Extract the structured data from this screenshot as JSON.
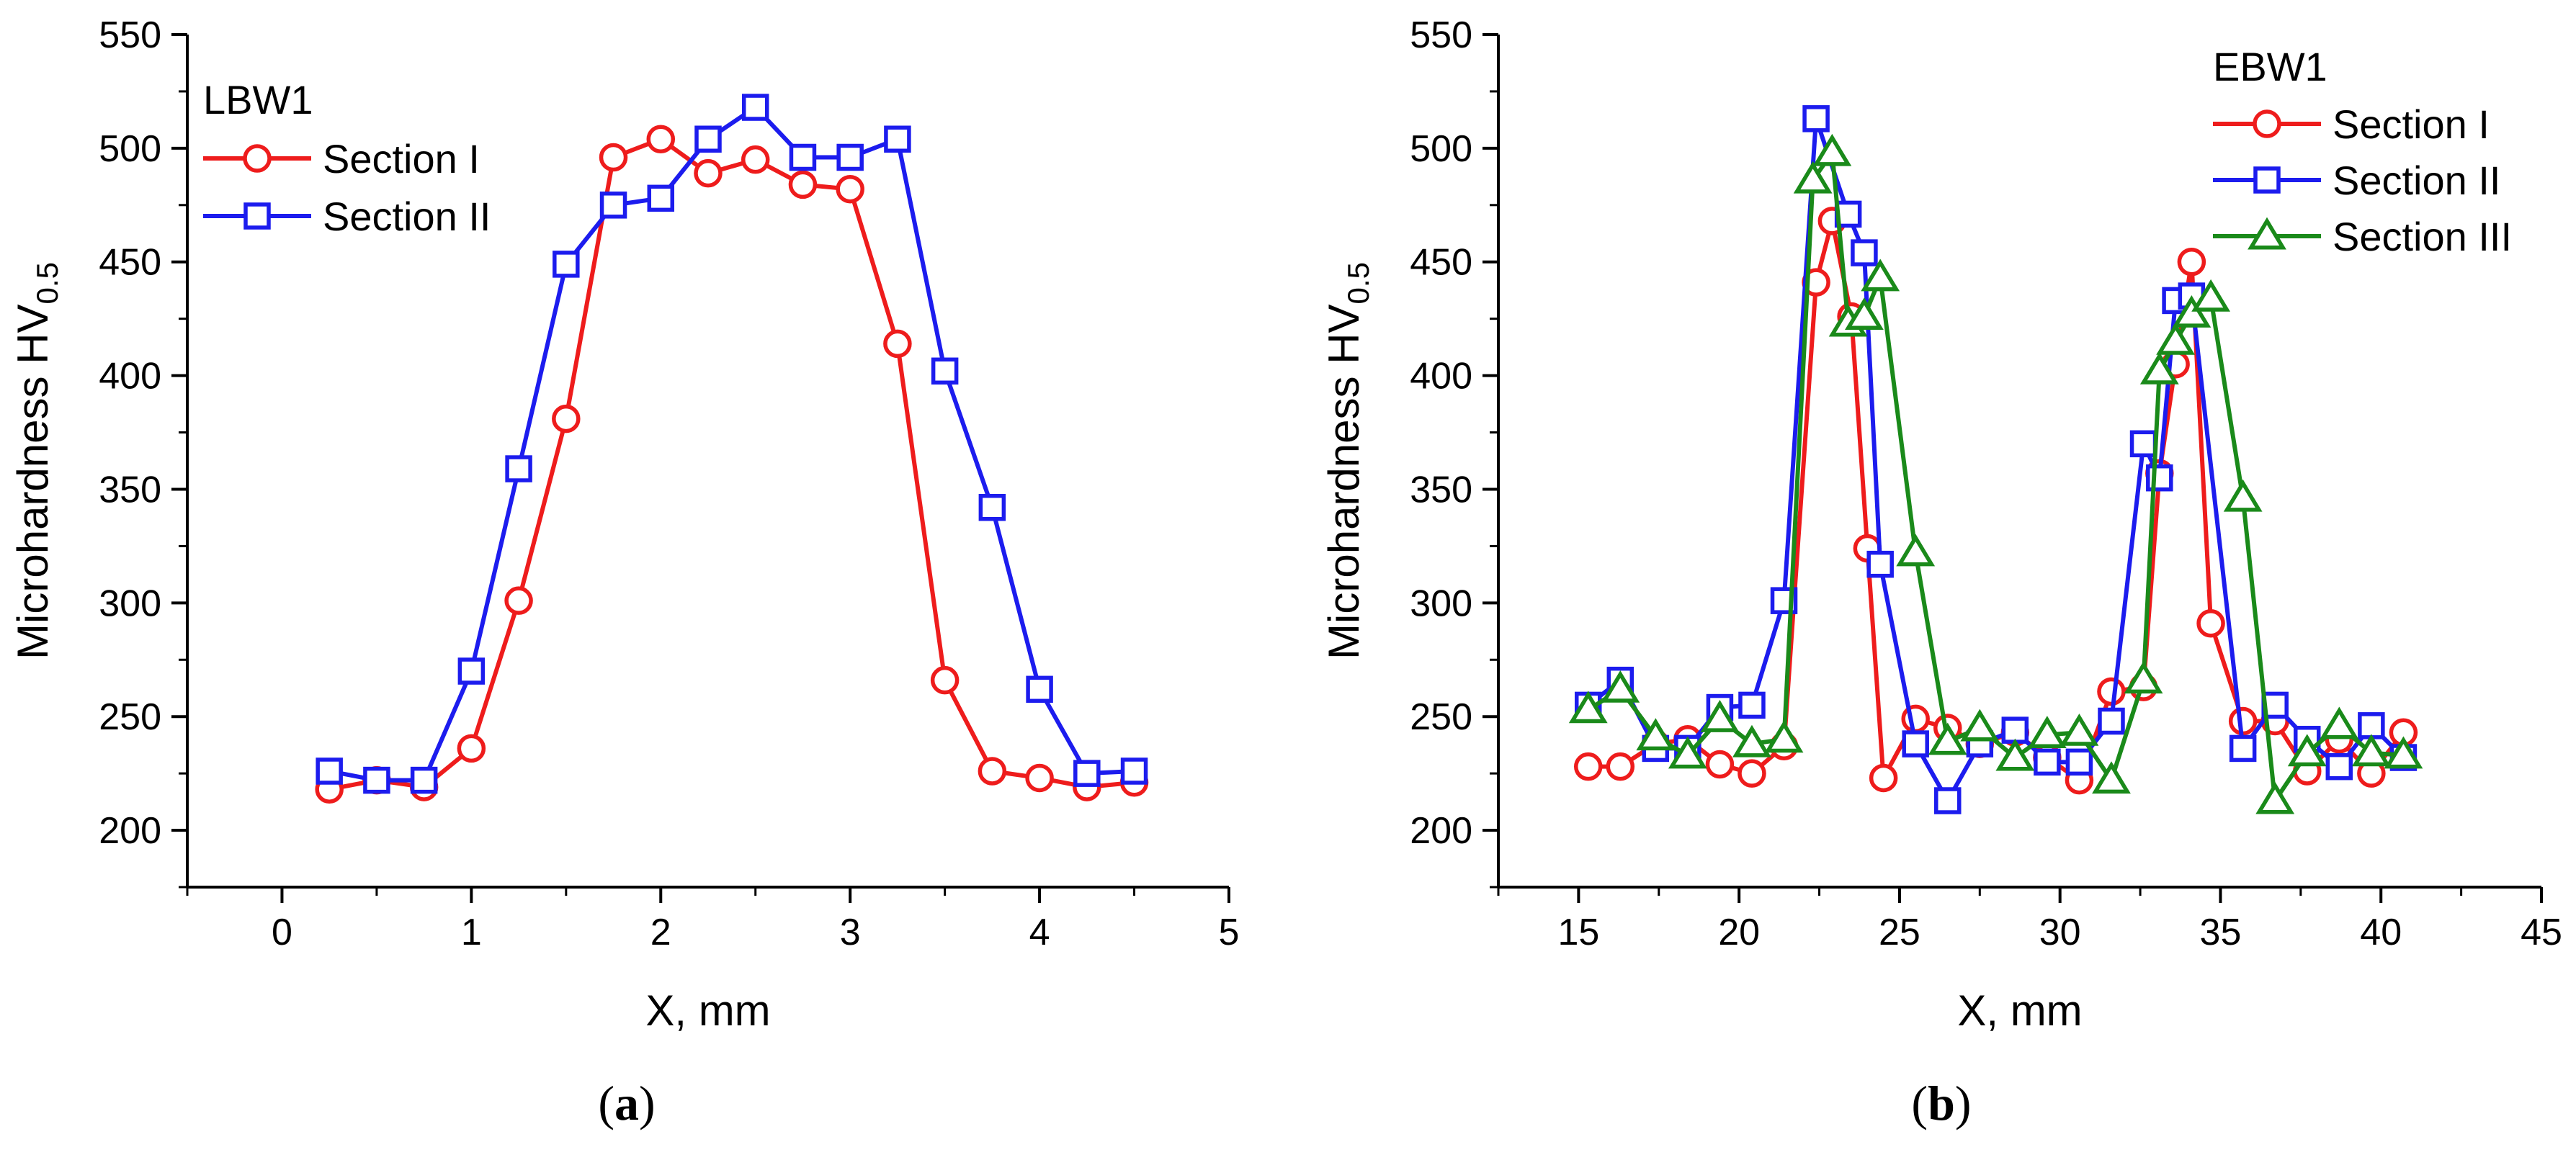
{
  "chart_data": [
    {
      "type": "line",
      "panel_label": "a",
      "title": "LBW1",
      "xlabel": "X, mm",
      "ylabel": "Microhardness HV",
      "ylabel_subscript": "0.5",
      "xlim": [
        -0.5,
        5
      ],
      "ylim": [
        175,
        550
      ],
      "xticks": [
        0,
        1,
        2,
        3,
        4,
        5
      ],
      "xtick_labels": [
        "0",
        "1",
        "2",
        "3",
        "4",
        "5"
      ],
      "yticks": [
        200,
        250,
        300,
        350,
        400,
        450,
        500,
        550
      ],
      "ytick_labels": [
        "200",
        "250",
        "300",
        "350",
        "400",
        "450",
        "500",
        "550"
      ],
      "legend_position": "top-left",
      "series": [
        {
          "name": "Section I",
          "color": "#ee1c1c",
          "marker": "circle",
          "x": [
            0.25,
            0.5,
            0.75,
            1.0,
            1.25,
            1.5,
            1.75,
            2.0,
            2.25,
            2.5,
            2.75,
            3.0,
            3.25,
            3.5,
            3.75,
            4.0,
            4.25,
            4.5
          ],
          "y": [
            218,
            222,
            219,
            236,
            301,
            381,
            496,
            504,
            489,
            495,
            484,
            482,
            414,
            266,
            226,
            223,
            219,
            221
          ]
        },
        {
          "name": "Section II",
          "color": "#1c1cee",
          "marker": "square",
          "x": [
            0.25,
            0.5,
            0.75,
            1.0,
            1.25,
            1.5,
            1.75,
            2.0,
            2.25,
            2.5,
            2.75,
            3.0,
            3.25,
            3.5,
            3.75,
            4.0,
            4.25,
            4.5
          ],
          "y": [
            226,
            222,
            222,
            270,
            359,
            449,
            475,
            478,
            504,
            518,
            496,
            496,
            504,
            402,
            342,
            262,
            225,
            226
          ]
        }
      ]
    },
    {
      "type": "line",
      "panel_label": "b",
      "title": "EBW1",
      "xlabel": "X, mm",
      "ylabel": "Microhardness HV",
      "ylabel_subscript": "0.5",
      "xlim": [
        12.5,
        45
      ],
      "ylim": [
        175,
        550
      ],
      "xticks": [
        15,
        20,
        25,
        30,
        35,
        40,
        45
      ],
      "xtick_labels": [
        "15",
        "20",
        "25",
        "30",
        "35",
        "40",
        "45"
      ],
      "yticks": [
        200,
        250,
        300,
        350,
        400,
        450,
        500,
        550
      ],
      "ytick_labels": [
        "200",
        "250",
        "300",
        "350",
        "400",
        "450",
        "500",
        "550"
      ],
      "legend_position": "top-right",
      "series": [
        {
          "name": "Section I",
          "color": "#ee1c1c",
          "marker": "circle",
          "x": [
            15.3,
            16.3,
            17.4,
            18.4,
            19.4,
            20.4,
            21.4,
            22.4,
            22.9,
            23.5,
            24.0,
            24.5,
            25.5,
            26.5,
            27.5,
            28.6,
            29.6,
            30.6,
            31.6,
            32.6,
            33.1,
            33.6,
            34.1,
            34.7,
            35.7,
            36.7,
            37.7,
            38.7,
            39.7,
            40.7
          ],
          "y": [
            228,
            228,
            238,
            240,
            229,
            225,
            237,
            441,
            468,
            426,
            324,
            223,
            249,
            245,
            238,
            243,
            232,
            222,
            261,
            263,
            357,
            405,
            450,
            291,
            248,
            248,
            226,
            240,
            225,
            243
          ]
        },
        {
          "name": "Section II",
          "color": "#1c1cee",
          "marker": "square",
          "x": [
            15.3,
            16.3,
            17.4,
            18.4,
            19.4,
            20.4,
            21.4,
            22.4,
            23.4,
            23.9,
            24.4,
            25.5,
            26.5,
            27.5,
            28.6,
            29.6,
            30.6,
            31.6,
            32.6,
            33.1,
            33.6,
            34.1,
            35.7,
            36.7,
            37.7,
            38.7,
            39.7,
            40.7
          ],
          "y": [
            255,
            266,
            236,
            236,
            254,
            255,
            301,
            513,
            471,
            454,
            317,
            238,
            213,
            238,
            244,
            230,
            230,
            248,
            370,
            355,
            433,
            435,
            236,
            255,
            240,
            228,
            246,
            232
          ]
        },
        {
          "name": "Section III",
          "color": "#1a8a1a",
          "marker": "triangle",
          "x": [
            15.3,
            16.3,
            17.4,
            18.4,
            19.4,
            20.4,
            21.4,
            22.3,
            22.9,
            23.4,
            23.9,
            24.4,
            25.5,
            26.5,
            27.5,
            28.6,
            29.6,
            30.6,
            31.6,
            32.6,
            33.1,
            33.6,
            34.1,
            34.7,
            35.7,
            36.7,
            37.7,
            38.7,
            39.7,
            40.7
          ],
          "y": [
            253,
            262,
            241,
            233,
            249,
            238,
            240,
            486,
            498,
            423,
            426,
            443,
            322,
            239,
            245,
            232,
            242,
            243,
            222,
            266,
            402,
            415,
            427,
            434,
            346,
            213,
            234,
            246,
            234,
            233
          ]
        }
      ]
    }
  ]
}
